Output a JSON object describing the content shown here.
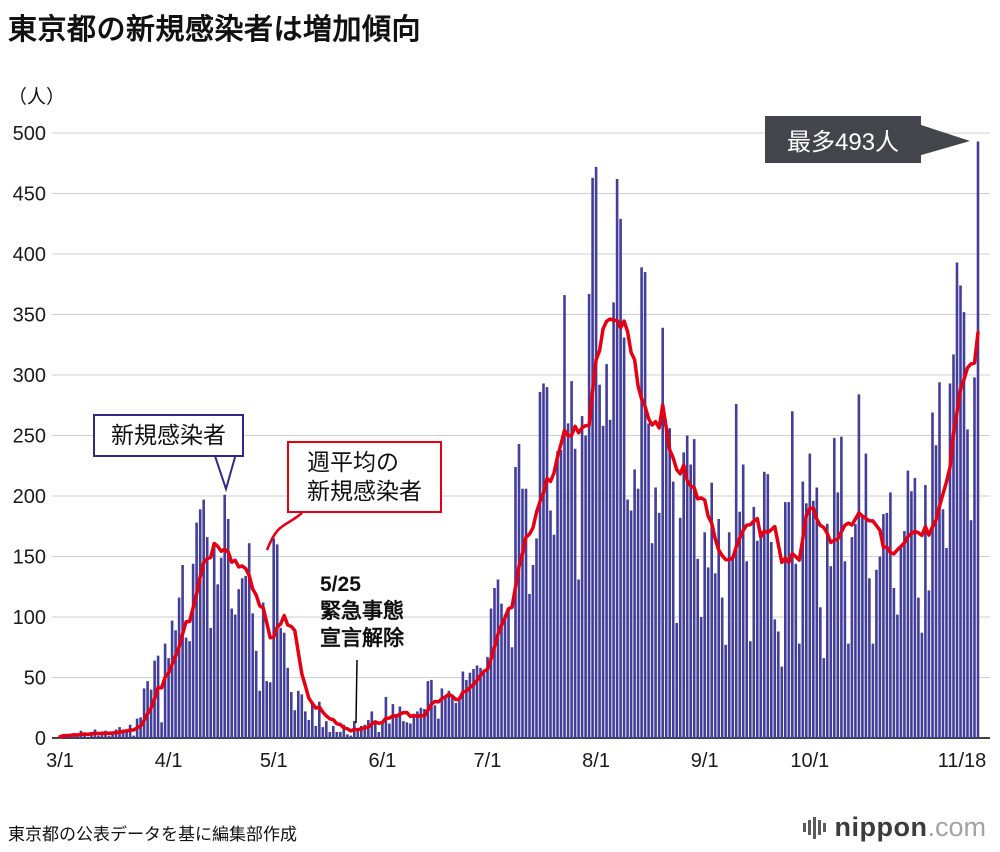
{
  "title": "東京都の新規感染者は増加傾向",
  "y_unit": "（人）",
  "footer": "東京都の公表データを基に編集部作成",
  "logo": {
    "name": "nippon",
    "tld": ".com"
  },
  "annotations": {
    "bars_label": "新規感染者",
    "avg_label_line1": "週平均の",
    "avg_label_line2": "新規感染者",
    "event_date": "5/25",
    "event_line1": "緊急事態",
    "event_line2": "宣言解除",
    "peak_label": "最多493人"
  },
  "chart_data": {
    "type": "bar",
    "title": "東京都の新規感染者は増加傾向",
    "ylabel": "（人）",
    "ylim": [
      0,
      500
    ],
    "y_step": 50,
    "grid": true,
    "start_date": "3/1",
    "end_date": "11/18",
    "x_ticks": [
      {
        "label": "3/1",
        "day": 0
      },
      {
        "label": "4/1",
        "day": 31
      },
      {
        "label": "5/1",
        "day": 61
      },
      {
        "label": "6/1",
        "day": 92
      },
      {
        "label": "7/1",
        "day": 122
      },
      {
        "label": "8/1",
        "day": 153
      },
      {
        "label": "9/1",
        "day": 184
      },
      {
        "label": "10/1",
        "day": 214
      },
      {
        "label": "11/18",
        "day": 262
      }
    ],
    "colors": {
      "bar": "#433E99",
      "line": "#E60012",
      "grid": "#CFCFCF",
      "axis": "#000000",
      "badge_bg": "#44444D",
      "callout_border": "#2D2A8C"
    },
    "series": [
      {
        "name": "新規感染者",
        "type": "bar",
        "values": [
          1,
          3,
          2,
          3,
          4,
          2,
          6,
          3,
          1,
          5,
          7,
          2,
          4,
          6,
          2,
          3,
          7,
          9,
          7,
          7,
          11,
          2,
          16,
          17,
          41,
          47,
          40,
          64,
          68,
          13,
          78,
          66,
          97,
          89,
          116,
          143,
          83,
          80,
          144,
          178,
          189,
          197,
          166,
          91,
          161,
          127,
          149,
          201,
          181,
          107,
          102,
          123,
          132,
          134,
          161,
          103,
          72,
          39,
          112,
          47,
          46,
          165,
          160,
          91,
          87,
          58,
          38,
          23,
          39,
          36,
          22,
          15,
          28,
          10,
          30,
          9,
          14,
          5,
          10,
          5,
          5,
          11,
          3,
          2,
          14,
          8,
          10,
          11,
          15,
          22,
          14,
          5,
          13,
          34,
          12,
          28,
          20,
          26,
          14,
          13,
          12,
          18,
          22,
          25,
          24,
          47,
          48,
          27,
          16,
          41,
          35,
          39,
          35,
          29,
          31,
          55,
          48,
          54,
          57,
          60,
          58,
          54,
          67,
          107,
          124,
          131,
          111,
          102,
          106,
          75,
          224,
          243,
          206,
          206,
          119,
          143,
          165,
          286,
          293,
          290,
          188,
          168,
          237,
          238,
          366,
          260,
          295,
          239,
          131,
          266,
          250,
          367,
          463,
          472,
          292,
          258,
          309,
          263,
          360,
          462,
          429,
          331,
          197,
          188,
          222,
          206,
          389,
          385,
          260,
          161,
          207,
          186,
          339,
          258,
          256,
          212,
          95,
          182,
          236,
          250,
          226,
          247,
          148,
          100,
          170,
          141,
          211,
          136,
          181,
          116,
          77,
          170,
          149,
          276,
          187,
          226,
          146,
          80,
          191,
          163,
          171,
          220,
          218,
          162,
          98,
          88,
          59,
          195,
          195,
          270,
          144,
          78,
          212,
          194,
          235,
          196,
          207,
          108,
          66,
          177,
          142,
          248,
          203,
          249,
          146,
          78,
          166,
          177,
          284,
          184,
          235,
          132,
          78,
          139,
          150,
          185,
          186,
          203,
          124,
          102,
          158,
          171,
          221,
          204,
          215,
          116,
          87,
          209,
          122,
          269,
          242,
          294,
          189,
          157,
          293,
          317,
          393,
          374,
          352,
          255,
          180,
          298,
          493
        ]
      },
      {
        "name": "週平均の新規感染者",
        "type": "line",
        "derived": "7day_trailing_average_of_series_0"
      }
    ]
  }
}
